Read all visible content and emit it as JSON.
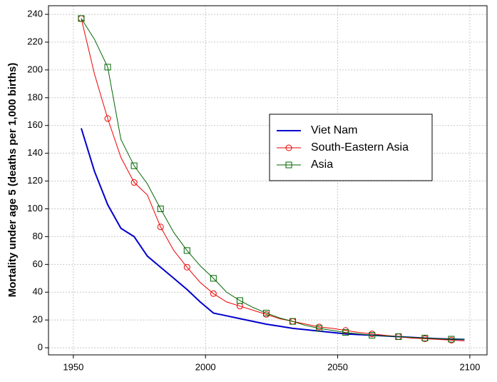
{
  "chart_data": {
    "type": "line",
    "y_label": "Mortality under age 5 (deaths per 1,000 births)",
    "x": [
      1953,
      1958,
      1963,
      1968,
      1973,
      1978,
      1983,
      1988,
      1993,
      1998,
      2003,
      2008,
      2013,
      2018,
      2023,
      2028,
      2033,
      2038,
      2043,
      2048,
      2053,
      2058,
      2063,
      2068,
      2073,
      2078,
      2083,
      2088,
      2093,
      2098
    ],
    "series": [
      {
        "name": "Viet Nam",
        "color": "#0000cc",
        "marker": "none",
        "values": [
          158,
          127,
          103,
          86,
          80,
          66,
          58,
          50,
          42,
          33,
          25,
          23,
          21,
          19,
          17,
          15.5,
          14,
          13,
          12,
          11,
          10,
          9.5,
          9,
          8.5,
          8,
          7.5,
          7,
          6.5,
          6.2,
          6
        ]
      },
      {
        "name": "South-Eastern Asia",
        "color": "#ee0000",
        "marker": "circle",
        "values": [
          237,
          197,
          165,
          137,
          119,
          110,
          87,
          70,
          58,
          47,
          39,
          33,
          30,
          27,
          24,
          21,
          19,
          17,
          15,
          14,
          12.5,
          11,
          10,
          9,
          8,
          7,
          6.5,
          6,
          5.5,
          5
        ]
      },
      {
        "name": "Asia",
        "color": "#006600",
        "marker": "square",
        "values": [
          237,
          222,
          202,
          150,
          131,
          118,
          100,
          83,
          70,
          59,
          50,
          40,
          34,
          29,
          25,
          21.5,
          19,
          16,
          14,
          12.5,
          11,
          10,
          9,
          8.5,
          8,
          7.5,
          7,
          6.5,
          6.2,
          6
        ]
      }
    ],
    "marker_every": 2,
    "xlim": [
      1940.6,
      2106.5
    ],
    "xticks": [
      1950,
      2000,
      2050,
      2100
    ],
    "ylim": [
      -5.1,
      246.2
    ],
    "yticks": [
      0,
      20,
      40,
      60,
      80,
      100,
      120,
      140,
      160,
      180,
      200,
      220,
      240
    ],
    "grid": true,
    "legend": "right"
  }
}
